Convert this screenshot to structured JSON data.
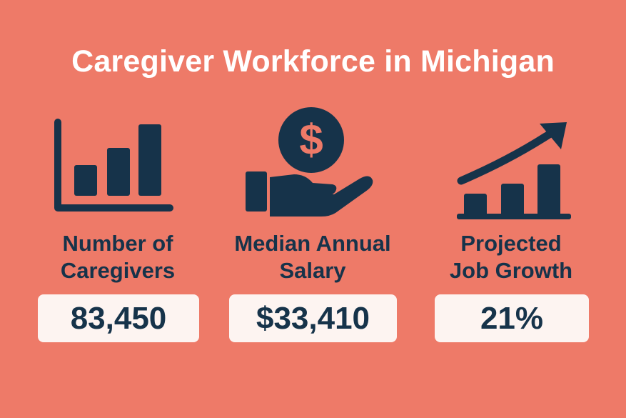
{
  "title": "Caregiver Workforce in Michigan",
  "colors": {
    "background": "#EE7A68",
    "primary": "#16334A",
    "box": "#FDF4F1",
    "title": "#FFFFFF"
  },
  "stats": [
    {
      "icon": "bar-chart-icon",
      "label_line1": "Number of",
      "label_line2": "Caregivers",
      "value": "83,450"
    },
    {
      "icon": "hand-dollar-coin-icon",
      "label_line1": "Median Annual",
      "label_line2": "Salary",
      "value": "$33,410"
    },
    {
      "icon": "growth-chart-arrow-icon",
      "label_line1": "Projected",
      "label_line2": "Job Growth",
      "value": "21%"
    }
  ]
}
